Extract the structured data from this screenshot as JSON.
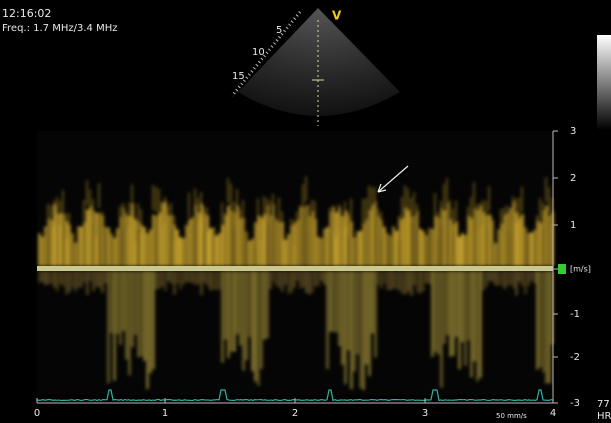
{
  "header": {
    "time": "12:16:02",
    "frequency": "Freq.: 1.7 MHz/3.4 MHz"
  },
  "sector": {
    "depth_labels": [
      "5",
      "10",
      "15"
    ],
    "mode": "V"
  },
  "velocity_axis": {
    "ticks": [
      "3",
      "2",
      "1",
      "[m/s]",
      "-1",
      "-2",
      "-3"
    ]
  },
  "time_axis": {
    "ticks": [
      "0",
      "1",
      "2",
      "3",
      "4"
    ],
    "sweep": "50 mm/s"
  },
  "side": {
    "heart_rate": "77",
    "hr_label": "HR"
  }
}
